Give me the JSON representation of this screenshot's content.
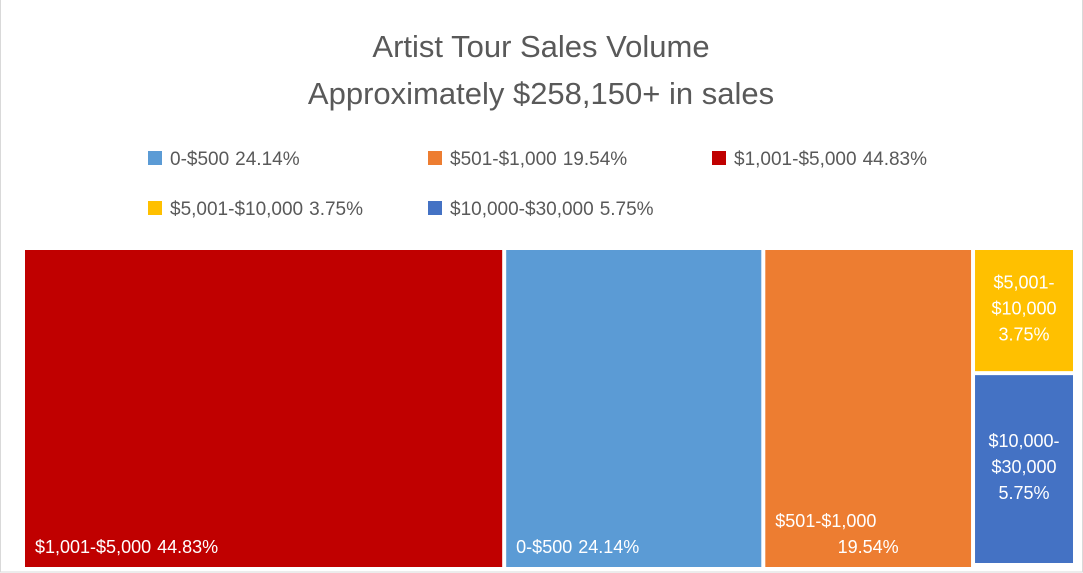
{
  "chart_data": {
    "type": "treemap",
    "title": "Artist Tour Sales Volume",
    "subtitle": "Approximately $258,150+ in sales",
    "categories": [
      "0-$500",
      "$501-$1,000",
      "$1,001-$5,000",
      "$5,001-$10,000",
      "$10,000-$30,000"
    ],
    "values": [
      24.14,
      19.54,
      44.83,
      3.75,
      5.75
    ],
    "value_labels": [
      "24.14%",
      "19.54%",
      "44.83%",
      "3.75%",
      "5.75%"
    ],
    "colors": [
      "#5b9bd5",
      "#ed7d31",
      "#c00000",
      "#ffc000",
      "#4472c4"
    ],
    "legend": "top"
  }
}
